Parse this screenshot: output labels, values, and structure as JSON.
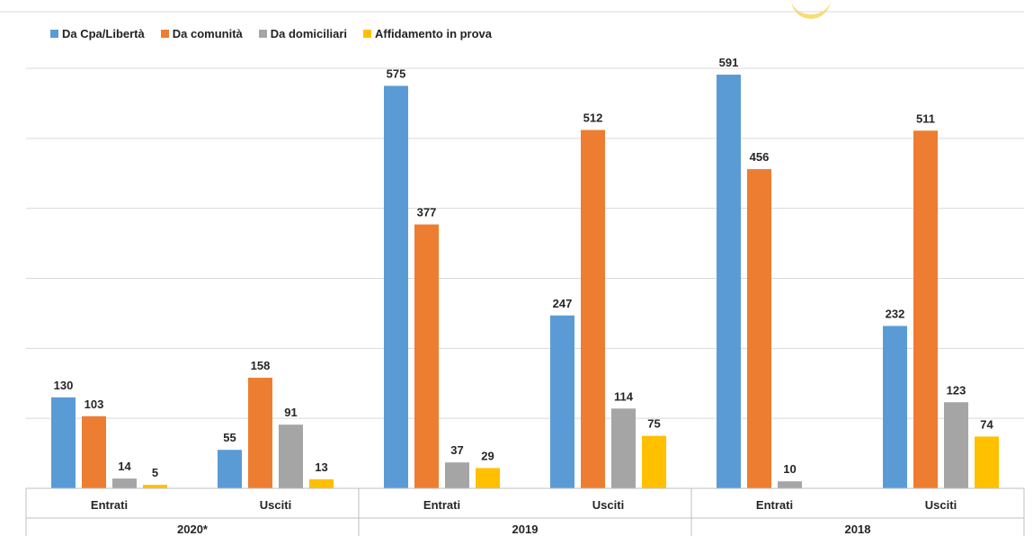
{
  "chart_data": {
    "type": "bar",
    "title": "",
    "xlabel": "",
    "ylabel": "",
    "ylim": [
      0,
      600
    ],
    "grid": true,
    "legend_position": "top-left",
    "groups": [
      {
        "label": "2020*",
        "subgroups": [
          "Entrati",
          "Usciti"
        ]
      },
      {
        "label": "2019",
        "subgroups": [
          "Entrati",
          "Usciti"
        ]
      },
      {
        "label": "2018",
        "subgroups": [
          "Entrati",
          "Usciti"
        ]
      }
    ],
    "categories": [
      "Entrati",
      "Usciti",
      "Entrati",
      "Usciti",
      "Entrati",
      "Usciti"
    ],
    "series": [
      {
        "name": "Da Cpa/Libertà",
        "color": "#5b9bd5",
        "values": [
          130,
          55,
          575,
          247,
          591,
          232
        ]
      },
      {
        "name": "Da comunità",
        "color": "#ed7d31",
        "values": [
          103,
          158,
          377,
          512,
          456,
          511
        ]
      },
      {
        "name": "Da domiciliari",
        "color": "#a5a5a5",
        "values": [
          14,
          91,
          37,
          114,
          10,
          123
        ]
      },
      {
        "name": "Affidamento in prova",
        "color": "#ffc000",
        "values": [
          5,
          13,
          29,
          75,
          null,
          74
        ]
      }
    ]
  }
}
